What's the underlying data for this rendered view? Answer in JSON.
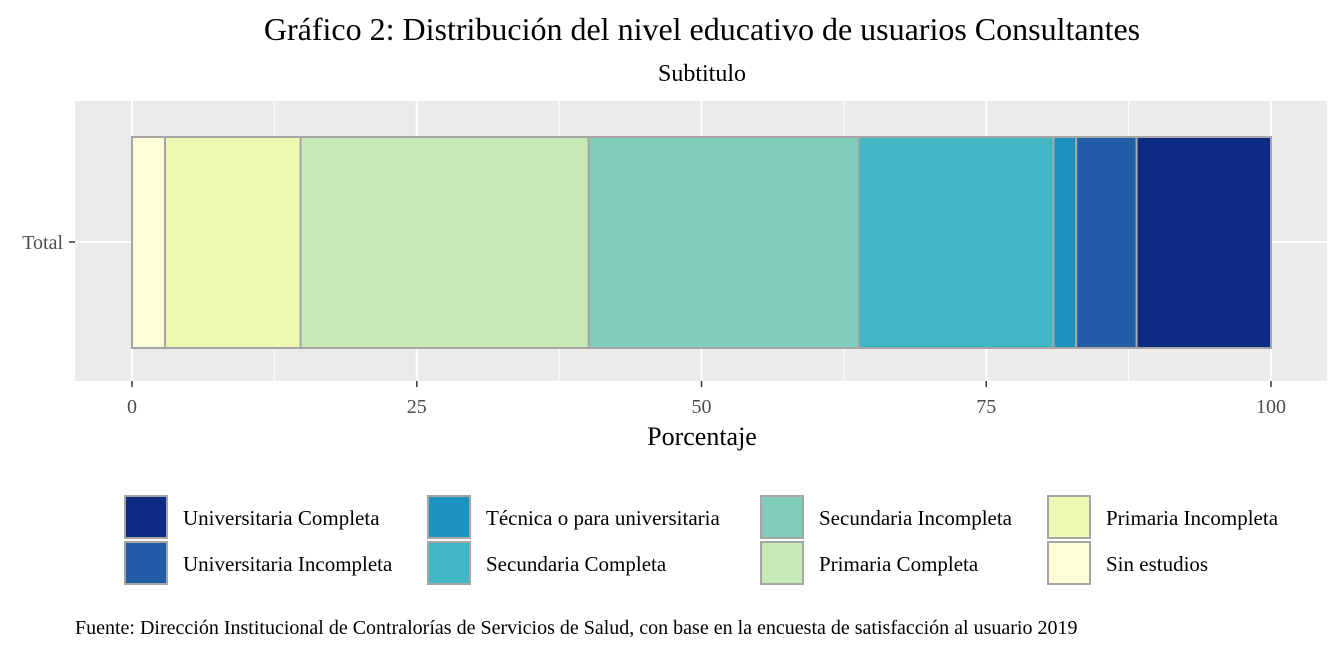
{
  "chart_data": {
    "type": "bar",
    "orientation": "horizontal",
    "stacked": true,
    "title": "Gráfico 2: Distribución del nivel educativo de usuarios Consultantes",
    "subtitle": "Subtitulo",
    "xlabel": "Porcentaje",
    "ylabel": "",
    "categories": [
      "Total"
    ],
    "xlim": [
      0,
      100
    ],
    "x_ticks": [
      "0",
      "25",
      "50",
      "75",
      "100"
    ],
    "grid": true,
    "legend_position": "bottom",
    "segments": [
      {
        "name": "Sin estudios",
        "value": 2.9,
        "color": "#FFFFD9"
      },
      {
        "name": "Primaria Incompleta",
        "value": 11.9,
        "color": "#EDF8B1"
      },
      {
        "name": "Primaria Completa",
        "value": 25.3,
        "color": "#C7E9B4"
      },
      {
        "name": "Secundaria Incompleta",
        "value": 23.7,
        "color": "#7FCDBB"
      },
      {
        "name": "Secundaria Completa",
        "value": 17.1,
        "color": "#41B6C4"
      },
      {
        "name": "Técnica o para universitaria",
        "value": 2.0,
        "color": "#1D91C0"
      },
      {
        "name": "Universitaria Incompleta",
        "value": 5.3,
        "color": "#225EA8"
      },
      {
        "name": "Universitaria Completa",
        "value": 11.8,
        "color": "#0C2C84"
      }
    ],
    "legend_order": [
      "Universitaria Completa",
      "Universitaria Incompleta",
      "Técnica o para universitaria",
      "Secundaria Completa",
      "Secundaria Incompleta",
      "Primaria Completa",
      "Primaria Incompleta",
      "Sin estudios"
    ]
  },
  "caption": "Fuente: Dirección Institucional de Contralorías de Servicios de Salud, con base en la encuesta de satisfacción al usuario 2019"
}
